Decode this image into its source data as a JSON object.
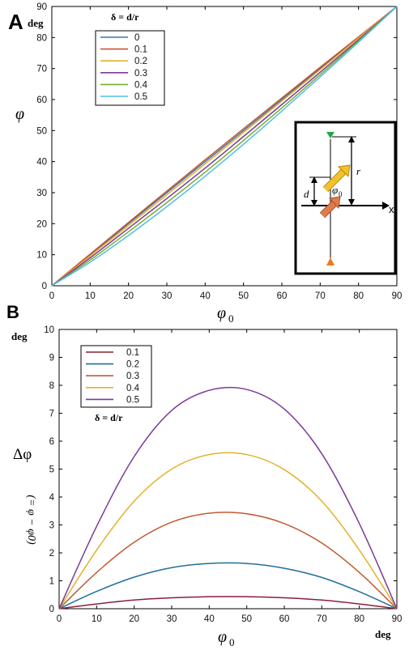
{
  "chart_data": [
    {
      "panel": "A",
      "type": "line",
      "unit_label": "deg",
      "xlabel": "φ",
      "xlabel_sub": "0",
      "ylabel": "φ",
      "xlim": [
        0,
        90
      ],
      "ylim": [
        0,
        90
      ],
      "xticks": [
        0,
        10,
        20,
        30,
        40,
        50,
        60,
        70,
        80,
        90
      ],
      "yticks": [
        0,
        10,
        20,
        30,
        40,
        50,
        60,
        70,
        80,
        90
      ],
      "legend_title": "δ = d/r",
      "legend_location": "top-left",
      "x": [
        0,
        10,
        20,
        30,
        40,
        50,
        60,
        70,
        80,
        90
      ],
      "series": [
        {
          "name": "0",
          "color": "#3f72b4",
          "values": [
            0,
            10,
            20,
            30,
            40,
            50,
            60,
            70,
            80,
            90
          ]
        },
        {
          "name": "0.1",
          "color": "#c8542b",
          "values": [
            0,
            10.2,
            20.4,
            30.5,
            40.6,
            50.6,
            60.5,
            70.4,
            80.2,
            90
          ]
        },
        {
          "name": "0.2",
          "color": "#e3b12a",
          "values": [
            0,
            9.6,
            19.4,
            29.3,
            39.3,
            49.4,
            59.5,
            69.6,
            79.8,
            90
          ]
        },
        {
          "name": "0.3",
          "color": "#7b3a96",
          "values": [
            0,
            9.0,
            18.5,
            28.1,
            37.9,
            48.1,
            58.4,
            68.8,
            79.3,
            90
          ]
        },
        {
          "name": "0.4",
          "color": "#77ac30",
          "values": [
            0,
            8.3,
            17.4,
            26.8,
            36.6,
            46.8,
            57.3,
            68.0,
            78.9,
            90
          ]
        },
        {
          "name": "0.5",
          "color": "#4dbeee",
          "values": [
            0,
            7.6,
            16.2,
            25.5,
            35.3,
            45.6,
            56.3,
            67.3,
            78.5,
            90
          ]
        }
      ],
      "inset": {
        "x_label": "x",
        "r_label": "r",
        "d_label": "d",
        "phi_label": "φ",
        "phi_sub": "0"
      }
    },
    {
      "panel": "B",
      "type": "line",
      "unit_label_y": "deg",
      "unit_label_x": "deg",
      "xlabel": "φ",
      "xlabel_sub": "0",
      "ylabel": "Δφ",
      "ylabel_secondary": "(= φ − φ0)",
      "xlim": [
        0,
        90
      ],
      "ylim": [
        0,
        10
      ],
      "xticks": [
        0,
        10,
        20,
        30,
        40,
        50,
        60,
        70,
        80,
        90
      ],
      "yticks": [
        0,
        1,
        2,
        3,
        4,
        5,
        6,
        7,
        8,
        9,
        10
      ],
      "legend_title": "δ = d/r",
      "legend_location": "top-left",
      "x": [
        0,
        10,
        20,
        30,
        40,
        50,
        60,
        70,
        80,
        90
      ],
      "series": [
        {
          "name": "0.1",
          "color": "#8a1f3a",
          "values": [
            0,
            0.17,
            0.31,
            0.39,
            0.43,
            0.43,
            0.39,
            0.31,
            0.17,
            0
          ]
        },
        {
          "name": "0.2",
          "color": "#1f6f9a",
          "values": [
            0,
            0.62,
            1.13,
            1.47,
            1.62,
            1.62,
            1.45,
            1.12,
            0.61,
            0
          ]
        },
        {
          "name": "0.3",
          "color": "#c05a30",
          "values": [
            0,
            1.3,
            2.38,
            3.1,
            3.42,
            3.4,
            3.05,
            2.35,
            1.3,
            0
          ]
        },
        {
          "name": "0.4",
          "color": "#e3b12a",
          "values": [
            0,
            2.1,
            3.85,
            5.0,
            5.52,
            5.52,
            4.98,
            3.85,
            2.1,
            0
          ]
        },
        {
          "name": "0.5",
          "color": "#7b3a96",
          "values": [
            0,
            2.95,
            5.45,
            7.1,
            7.82,
            7.85,
            7.15,
            5.55,
            3.05,
            0
          ]
        }
      ]
    }
  ]
}
